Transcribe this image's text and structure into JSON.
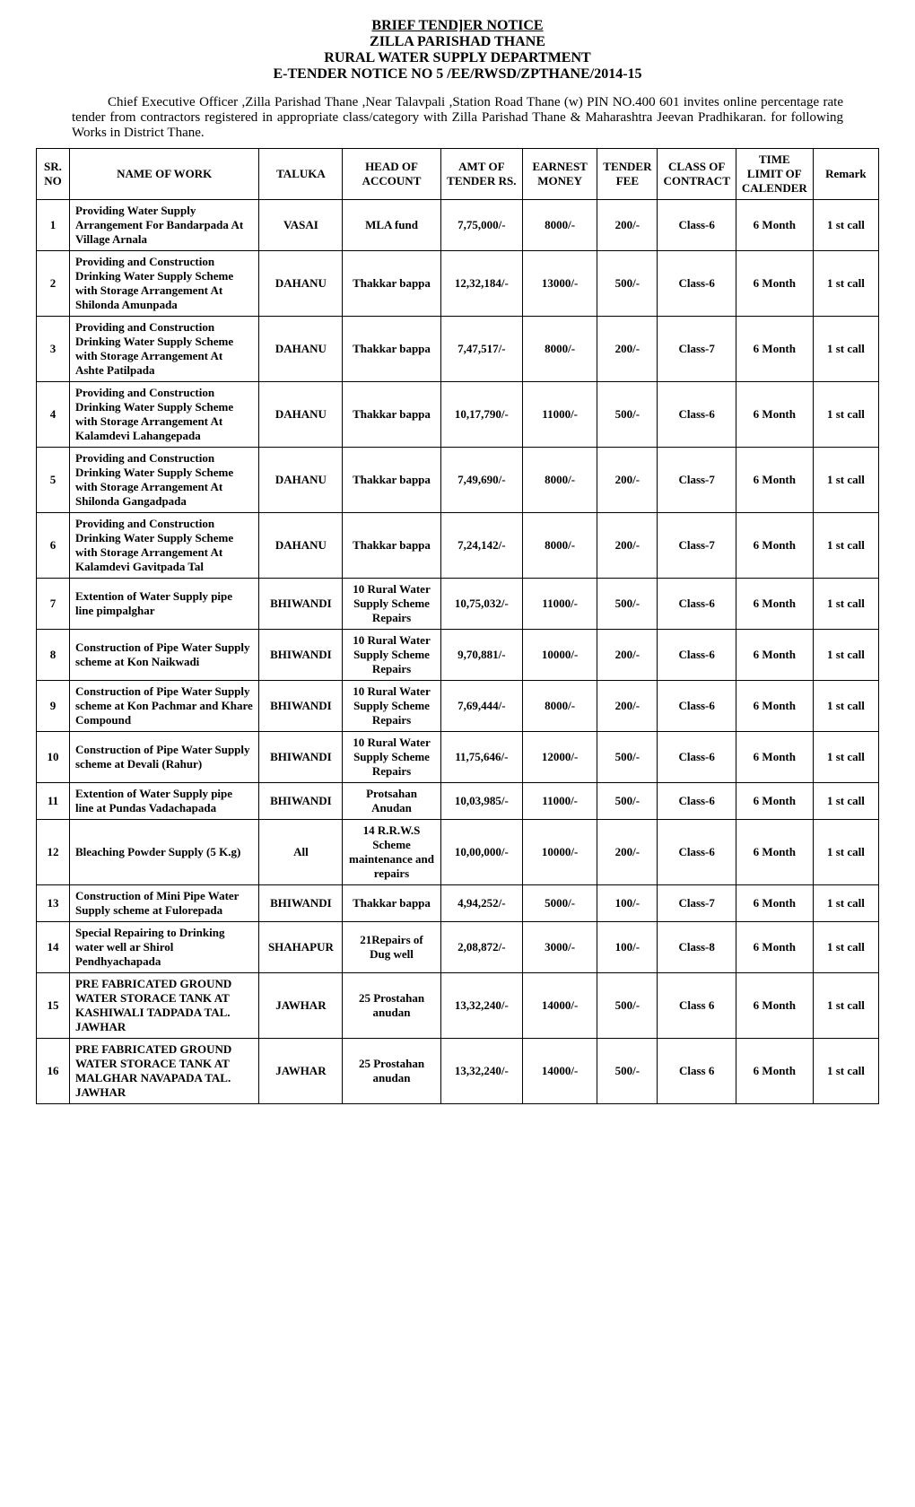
{
  "header": {
    "line1": "BRIEF TEND]ER NOTICE",
    "line2": "ZILLA PARISHAD THANE",
    "line3": "RURAL WATER SUPPLY DEPARTMENT",
    "line4": "E-TENDER NOTICE NO 5 /EE/RWSD/ZPTHANE/2014-15"
  },
  "intro": "Chief  Executive Officer ,Zilla Parishad Thane ,Near Talavpali ,Station Road Thane (w) PIN NO.400 601 invites online percentage rate tender from contractors registered in appropriate class/category with Zilla Parishad Thane & Maharashtra Jeevan  Pradhikaran. for following Works in District Thane.",
  "columns": {
    "sr": "SR. NO",
    "name": "NAME OF WORK",
    "taluka": "TALUKA",
    "head": "HEAD OF ACCOUNT",
    "amt": "AMT OF TENDER RS.",
    "emd": "EARNEST MONEY",
    "fee": "TENDER FEE",
    "cls": "CLASS OF CONTRACT",
    "time": "TIME LIMIT OF CALENDER",
    "rmk": "Remark"
  },
  "rows": [
    {
      "sr": "1",
      "name": "Providing Water Supply Arrangement For Bandarpada At Village Arnala",
      "taluka": "VASAI",
      "head": "MLA fund",
      "amt": "7,75,000/-",
      "emd": "8000/-",
      "fee": "200/-",
      "cls": "Class-6",
      "time": "6 Month",
      "rmk": "1 st call"
    },
    {
      "sr": "2",
      "name": "Providing and Construction Drinking Water Supply Scheme with Storage Arrangement At Shilonda Amunpada",
      "taluka": "DAHANU",
      "head": "Thakkar bappa",
      "amt": "12,32,184/-",
      "emd": "13000/-",
      "fee": "500/-",
      "cls": "Class-6",
      "time": "6 Month",
      "rmk": "1 st call"
    },
    {
      "sr": "3",
      "name": "Providing and Construction Drinking Water Supply Scheme with Storage Arrangement At Ashte Patilpada",
      "taluka": "DAHANU",
      "head": "Thakkar bappa",
      "amt": "7,47,517/-",
      "emd": "8000/-",
      "fee": "200/-",
      "cls": "Class-7",
      "time": "6 Month",
      "rmk": "1 st call"
    },
    {
      "sr": "4",
      "name": "Providing and Construction Drinking Water Supply Scheme with Storage Arrangement At Kalamdevi Lahangepada",
      "taluka": "DAHANU",
      "head": "Thakkar bappa",
      "amt": "10,17,790/-",
      "emd": "11000/-",
      "fee": "500/-",
      "cls": "Class-6",
      "time": "6 Month",
      "rmk": "1 st call"
    },
    {
      "sr": "5",
      "name": "Providing and Construction Drinking Water Supply Scheme with Storage Arrangement At Shilonda Gangadpada",
      "taluka": "DAHANU",
      "head": "Thakkar bappa",
      "amt": "7,49,690/-",
      "emd": "8000/-",
      "fee": "200/-",
      "cls": "Class-7",
      "time": "6 Month",
      "rmk": "1 st call"
    },
    {
      "sr": "6",
      "name": "Providing and Construction Drinking Water Supply Scheme with Storage Arrangement At Kalamdevi Gavitpada Tal",
      "taluka": "DAHANU",
      "head": "Thakkar bappa",
      "amt": "7,24,142/-",
      "emd": "8000/-",
      "fee": "200/-",
      "cls": "Class-7",
      "time": "6 Month",
      "rmk": "1 st call"
    },
    {
      "sr": "7",
      "name": "Extention of Water Supply pipe line pimpalghar",
      "taluka": "BHIWANDI",
      "head": "10 Rural Water Supply Scheme Repairs",
      "amt": "10,75,032/-",
      "emd": "11000/-",
      "fee": "500/-",
      "cls": "Class-6",
      "time": "6 Month",
      "rmk": "1 st call"
    },
    {
      "sr": "8",
      "name": "Construction of  Pipe Water Supply scheme at Kon Naikwadi",
      "taluka": "BHIWANDI",
      "head": "10 Rural Water Supply Scheme Repairs",
      "amt": "9,70,881/-",
      "emd": "10000/-",
      "fee": "200/-",
      "cls": "Class-6",
      "time": "6 Month",
      "rmk": "1 st call"
    },
    {
      "sr": "9",
      "name": "Construction of  Pipe Water Supply scheme at Kon Pachmar and Khare Compound",
      "taluka": "BHIWANDI",
      "head": "10 Rural Water Supply Scheme Repairs",
      "amt": "7,69,444/-",
      "emd": "8000/-",
      "fee": "200/-",
      "cls": "Class-6",
      "time": "6 Month",
      "rmk": "1 st call"
    },
    {
      "sr": "10",
      "name": "Construction of  Pipe Water Supply scheme at Devali (Rahur)",
      "taluka": "BHIWANDI",
      "head": "10 Rural Water Supply Scheme Repairs",
      "amt": "11,75,646/-",
      "emd": "12000/-",
      "fee": "500/-",
      "cls": "Class-6",
      "time": "6 Month",
      "rmk": "1 st call"
    },
    {
      "sr": "11",
      "name": "Extention of Water Supply pipe line at Pundas Vadachapada",
      "taluka": "BHIWANDI",
      "head": "Protsahan Anudan",
      "amt": "10,03,985/-",
      "emd": "11000/-",
      "fee": "500/-",
      "cls": "Class-6",
      "time": "6 Month",
      "rmk": "1 st call"
    },
    {
      "sr": "12",
      "name": "Bleaching Powder Supply (5 K.g)",
      "taluka": "All",
      "head": "14 R.R.W.S Scheme maintenance and repairs",
      "amt": "10,00,000/-",
      "emd": "10000/-",
      "fee": "200/-",
      "cls": "Class-6",
      "time": "6 Month",
      "rmk": "1 st call"
    },
    {
      "sr": "13",
      "name": "Construction of Mini Pipe Water Supply scheme at Fulorepada",
      "taluka": "BHIWANDI",
      "head": "Thakkar bappa",
      "amt": "4,94,252/-",
      "emd": "5000/-",
      "fee": "100/-",
      "cls": "Class-7",
      "time": "6 Month",
      "rmk": "1 st call"
    },
    {
      "sr": "14",
      "name": "Special Repairing to Drinking water well ar Shirol Pendhyachapada",
      "taluka": "SHAHAPUR",
      "head": "21Repairs of Dug well",
      "amt": "2,08,872/-",
      "emd": "3000/-",
      "fee": "100/-",
      "cls": "Class-8",
      "time": "6 Month",
      "rmk": "1 st call"
    },
    {
      "sr": "15",
      "name": "PRE FABRICATED GROUND WATER STORACE TANK AT KASHIWALI TADPADA TAL. JAWHAR",
      "taluka": "JAWHAR",
      "head": "25 Prostahan anudan",
      "amt": "13,32,240/-",
      "emd": "14000/-",
      "fee": "500/-",
      "cls": "Class 6",
      "time": "6 Month",
      "rmk": "1 st call"
    },
    {
      "sr": "16",
      "name": "PRE FABRICATED GROUND WATER STORACE TANK AT MALGHAR NAVAPADA TAL. JAWHAR",
      "taluka": "JAWHAR",
      "head": "25 Prostahan anudan",
      "amt": "13,32,240/-",
      "emd": "14000/-",
      "fee": "500/-",
      "cls": "Class 6",
      "time": "6 Month",
      "rmk": "1 st call"
    }
  ]
}
